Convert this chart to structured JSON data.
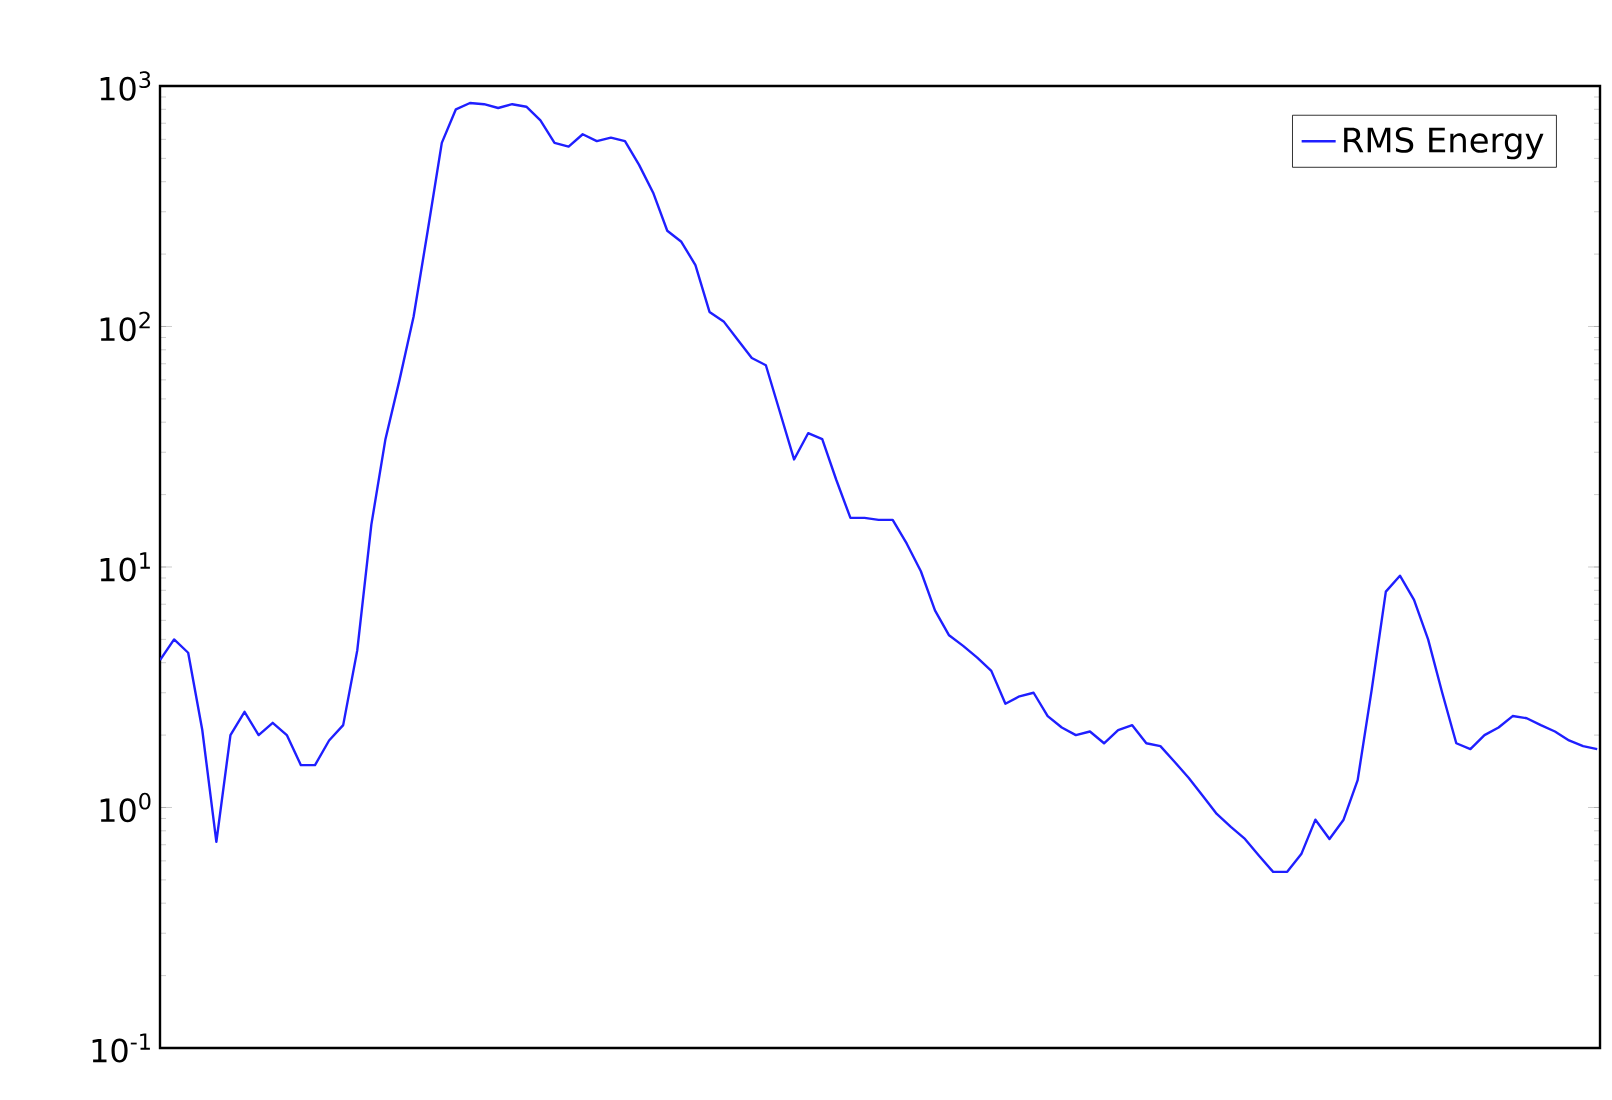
{
  "chart_data": {
    "type": "line",
    "log": "y",
    "grid": false,
    "legend": "top right",
    "marker": "none",
    "line_style": "solid",
    "tick_labels": "y",
    "categories": [
      null,
      null,
      null,
      null,
      null,
      null,
      null,
      null,
      null,
      null,
      null,
      null,
      null,
      null,
      null,
      null,
      null,
      null,
      null,
      null,
      null,
      null,
      null,
      null,
      null,
      null,
      null,
      null,
      null,
      null,
      null,
      null,
      null,
      null,
      null,
      null,
      null,
      null,
      null,
      null,
      null,
      null,
      null,
      null,
      null,
      null,
      null,
      null,
      null,
      null,
      null,
      null,
      null,
      null,
      null,
      null,
      null,
      null,
      null,
      null,
      null,
      null,
      null,
      null,
      null,
      null,
      null,
      null,
      null,
      null,
      null,
      null,
      null,
      null,
      null,
      null,
      null,
      null,
      null,
      null,
      null,
      null,
      null,
      null,
      null,
      null,
      null,
      null,
      null,
      null,
      null,
      null,
      null,
      null,
      null,
      null,
      null,
      null,
      null,
      null,
      null,
      null,
      null
    ],
    "ylim": [
      0.1,
      1000
    ],
    "yticks": [
      {
        "value": 0.1,
        "label": "10$^{-1}$"
      },
      {
        "value": 1,
        "label": "10$^{0}$"
      },
      {
        "value": 10,
        "label": "10$^{1}$"
      },
      {
        "value": 100,
        "label": "10$^{2}$"
      },
      {
        "value": 1000,
        "label": "10$^{3}$"
      }
    ],
    "series": [
      {
        "name": "RMS Energy",
        "color": "#1f1fff",
        "values": [
          4.1,
          5.0,
          4.4,
          2.1,
          0.72,
          2.0,
          2.5,
          2.0,
          2.25,
          2.0,
          1.5,
          1.5,
          1.9,
          2.2,
          4.5,
          15,
          34,
          60,
          110,
          250,
          580,
          800,
          850,
          840,
          810,
          840,
          820,
          720,
          580,
          560,
          630,
          590,
          610,
          590,
          470,
          360,
          250,
          225,
          180,
          115,
          105,
          88,
          74,
          69,
          44,
          28,
          36,
          34,
          23,
          16,
          16,
          15.7,
          15.7,
          12.5,
          9.6,
          6.6,
          5.2,
          4.7,
          4.2,
          3.7,
          2.7,
          2.9,
          3.0,
          2.4,
          2.15,
          2.0,
          2.07,
          1.85,
          2.1,
          2.2,
          1.85,
          1.8,
          1.55,
          1.33,
          1.12,
          0.94,
          0.83,
          0.74,
          0.63,
          0.54,
          0.54,
          0.64,
          0.89,
          0.74,
          0.89,
          1.3,
          3.1,
          7.9,
          9.2,
          7.3,
          5.0,
          3.0,
          1.85,
          1.75,
          2.0,
          2.15,
          2.4,
          2.35,
          2.2,
          2.07,
          1.9,
          1.8,
          1.75
        ]
      }
    ]
  }
}
